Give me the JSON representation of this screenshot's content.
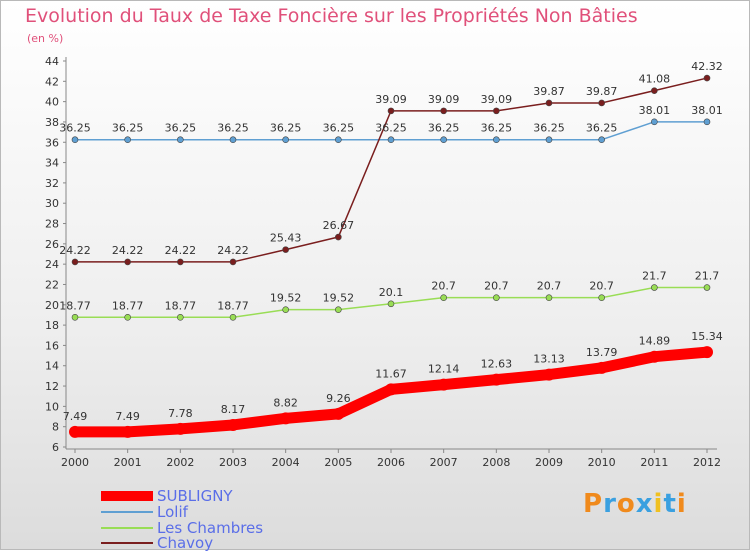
{
  "header": {
    "title": "Evolution du Taux de Taxe Foncière sur les Propriétés Non Bâties",
    "subtitle": "(en %)"
  },
  "logo": {
    "letters": [
      "P",
      "r",
      "o",
      "x",
      "i",
      "t",
      "i"
    ],
    "colors": [
      "#f08a1c",
      "#3aa0e0",
      "#f08a1c",
      "#3aa0e0",
      "#f0c020",
      "#3aa0e0",
      "#f08a1c"
    ]
  },
  "chart_data": {
    "type": "line",
    "title": "Evolution du Taux de Taxe Foncière sur les Propriétés Non Bâties",
    "ylabel": "(en %)",
    "xlabel": "",
    "ylim": [
      6,
      44
    ],
    "yticks": [
      6,
      8,
      10,
      12,
      14,
      16,
      18,
      20,
      22,
      24,
      26,
      28,
      30,
      32,
      34,
      36,
      38,
      40,
      42,
      44
    ],
    "x": [
      "2000",
      "2001",
      "2002",
      "2003",
      "2004",
      "2005",
      "2006",
      "2007",
      "2008",
      "2009",
      "2010",
      "2011",
      "2012"
    ],
    "grid": false,
    "legend_position": "bottom-left",
    "series": [
      {
        "name": "SUBLIGNY",
        "color": "#ff0000",
        "values": [
          7.49,
          7.49,
          7.78,
          8.17,
          8.82,
          9.26,
          11.67,
          12.14,
          12.63,
          13.13,
          13.79,
          14.89,
          15.34
        ],
        "labels": [
          "7.49",
          "7.49",
          "7.78",
          "8.17",
          "8.82",
          "9.26",
          "11.67",
          "12.14",
          "12.63",
          "13.13",
          "13.79",
          "14.89",
          "15.34"
        ]
      },
      {
        "name": "Lolif",
        "color": "#5f9fd2",
        "values": [
          36.25,
          36.25,
          36.25,
          36.25,
          36.25,
          36.25,
          36.25,
          36.25,
          36.25,
          36.25,
          36.25,
          38.01,
          38.01
        ],
        "labels": [
          "36.25",
          "36.25",
          "36.25",
          "36.25",
          "36.25",
          "36.25",
          "36.25",
          "36.25",
          "36.25",
          "36.25",
          "36.25",
          "38.01",
          "38.01"
        ]
      },
      {
        "name": "Les Chambres",
        "color": "#99dd55",
        "values": [
          18.77,
          18.77,
          18.77,
          18.77,
          19.52,
          19.52,
          20.1,
          20.7,
          20.7,
          20.7,
          20.7,
          21.7,
          21.7
        ],
        "labels": [
          "18.77",
          "18.77",
          "18.77",
          "18.77",
          "19.52",
          "19.52",
          "20.1",
          "20.7",
          "20.7",
          "20.7",
          "20.7",
          "21.7",
          "21.7"
        ]
      },
      {
        "name": "Chavoy",
        "color": "#7a1e1e",
        "values": [
          24.22,
          24.22,
          24.22,
          24.22,
          25.43,
          26.67,
          39.09,
          39.09,
          39.09,
          39.87,
          39.87,
          41.08,
          42.32
        ],
        "labels": [
          "24.22",
          "24.22",
          "24.22",
          "24.22",
          "25.43",
          "26.67",
          "39.09",
          "39.09",
          "39.09",
          "39.87",
          "39.87",
          "41.08",
          "42.32"
        ]
      }
    ]
  }
}
